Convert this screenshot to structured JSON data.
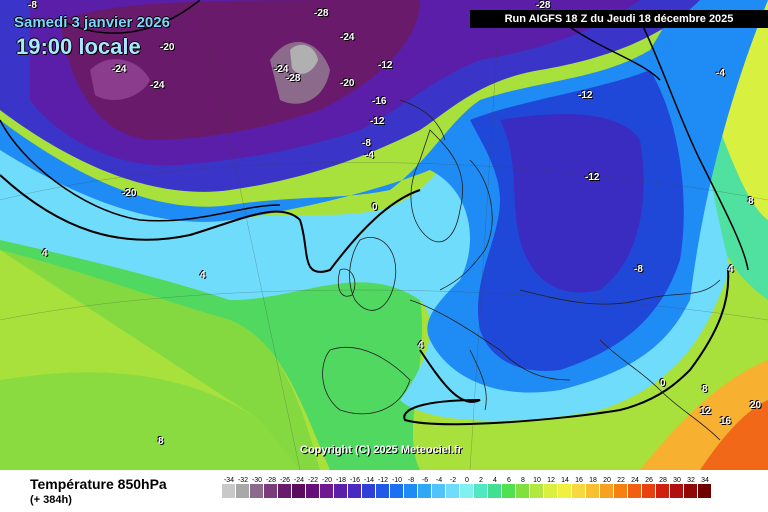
{
  "header": {
    "date_text": "Samedi 3 janvier 2026",
    "time_text": "19:00 locale",
    "run_text": "Run AIGFS 18 Z du Jeudi 18 décembre 2025"
  },
  "footer": {
    "parameter": "Température 850hPa",
    "lead": "(+ 384h)",
    "copyright": "Copyright (C) 2025 Meteociel.fr"
  },
  "scale": {
    "labels": [
      "-34",
      "-32",
      "-30",
      "-28",
      "-26",
      "-24",
      "-22",
      "-20",
      "-18",
      "-16",
      "-14",
      "-12",
      "-10",
      "-8",
      "-6",
      "-4",
      "-2",
      "0",
      "2",
      "4",
      "6",
      "8",
      "10",
      "12",
      "14",
      "16",
      "18",
      "20",
      "22",
      "24",
      "26",
      "28",
      "30",
      "32",
      "34"
    ],
    "colors": [
      "#c8c8c8",
      "#a8a8a8",
      "#8c6a8c",
      "#7a3c7a",
      "#6a1a6a",
      "#5c0c5c",
      "#660e7a",
      "#6f1a8f",
      "#5a1ea8",
      "#4a2ac0",
      "#3040d6",
      "#2058e8",
      "#1a70f0",
      "#1e8cf4",
      "#30a8f8",
      "#50c4fa",
      "#70dcfc",
      "#80f0f0",
      "#50e8c0",
      "#40e090",
      "#50e050",
      "#80e040",
      "#b0e840",
      "#d8f040",
      "#f0f040",
      "#f8d840",
      "#f8c030",
      "#f8a020",
      "#f88010",
      "#f06010",
      "#e84010",
      "#d02010",
      "#b01010",
      "#900808",
      "#700000"
    ]
  },
  "isotherms": [
    {
      "label": "-8",
      "tone": "light"
    },
    {
      "label": "-28",
      "tone": "light"
    },
    {
      "label": "-28",
      "tone": "light"
    },
    {
      "label": "-20",
      "tone": "light"
    },
    {
      "label": "-24",
      "tone": "light"
    },
    {
      "label": "-24",
      "tone": "light"
    },
    {
      "label": "-24",
      "tone": "light"
    },
    {
      "label": "-28",
      "tone": "light"
    },
    {
      "label": "-20",
      "tone": "light"
    },
    {
      "label": "-12",
      "tone": "light"
    },
    {
      "label": "-24",
      "tone": "light"
    },
    {
      "label": "-16",
      "tone": "light"
    },
    {
      "label": "-12",
      "tone": "light"
    },
    {
      "label": "-8",
      "tone": "light"
    },
    {
      "label": "-4",
      "tone": "light"
    },
    {
      "label": "-20",
      "tone": "light"
    },
    {
      "label": "-12",
      "tone": "light"
    },
    {
      "label": "-12",
      "tone": "light"
    },
    {
      "label": "-4",
      "tone": "light"
    },
    {
      "label": "0",
      "tone": "light"
    },
    {
      "label": "4",
      "tone": "light"
    },
    {
      "label": "4",
      "tone": "light"
    },
    {
      "label": "4",
      "tone": "light"
    },
    {
      "label": "-8",
      "tone": "light"
    },
    {
      "label": "8",
      "tone": "light"
    },
    {
      "label": "4",
      "tone": "light"
    },
    {
      "label": "0",
      "tone": "light"
    },
    {
      "label": "8",
      "tone": "light"
    },
    {
      "label": "12",
      "tone": "light"
    },
    {
      "label": "16",
      "tone": "light"
    },
    {
      "label": "20",
      "tone": "light"
    },
    {
      "label": "8",
      "tone": "light"
    }
  ]
}
